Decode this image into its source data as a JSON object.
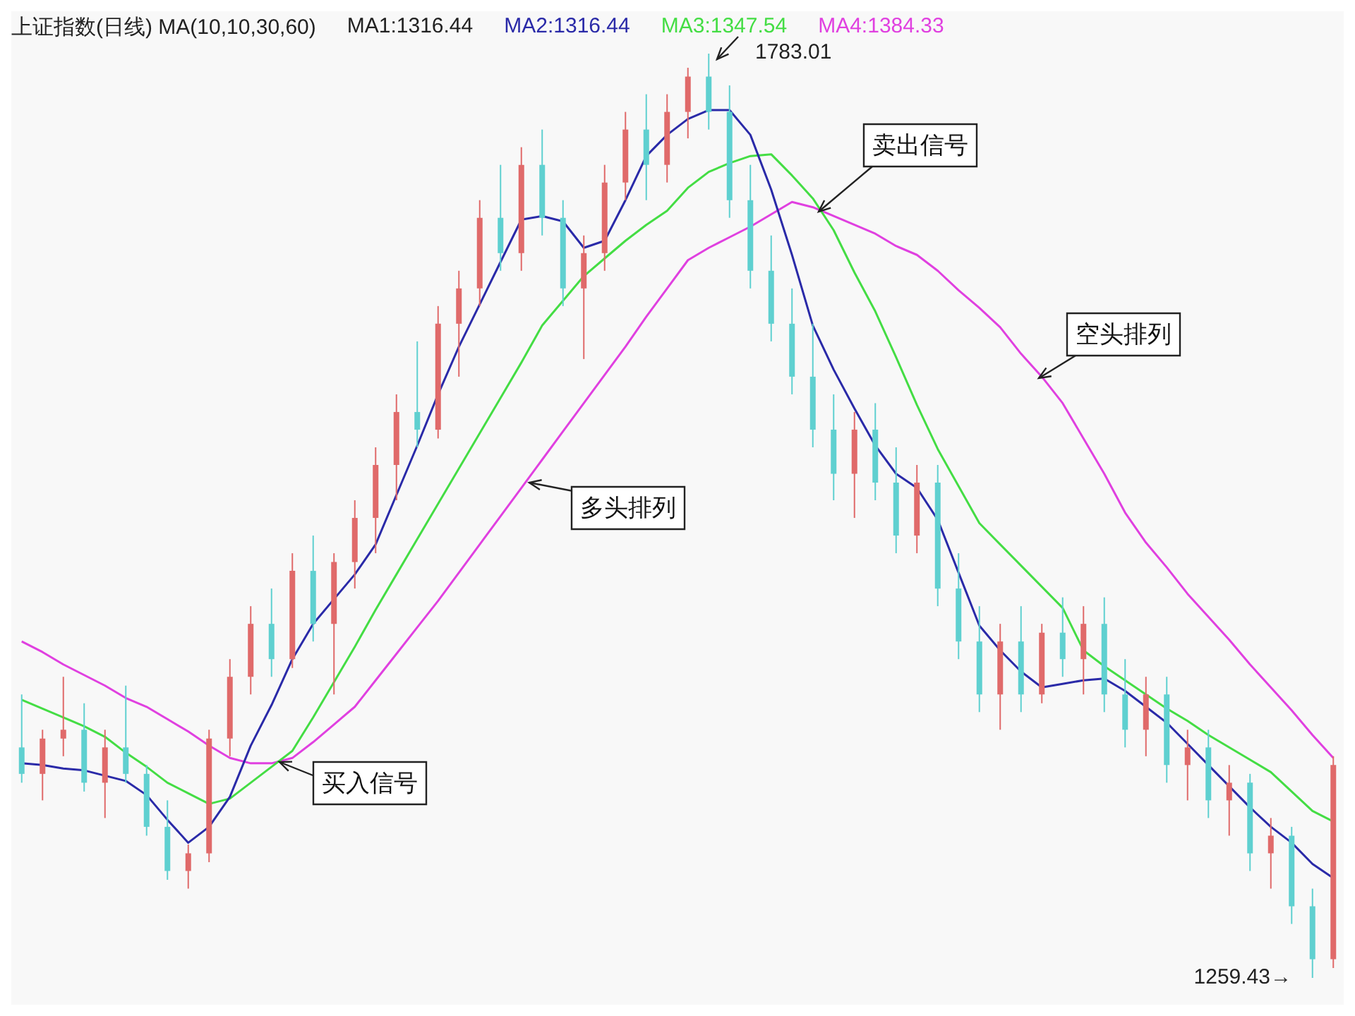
{
  "chart_data": {
    "type": "candlestick",
    "title": "上证指数(日线) MA(10,10,30,60)",
    "legend": "top left",
    "categories": [
      null,
      null,
      null,
      null,
      null,
      null,
      null,
      null,
      null,
      null,
      null,
      null,
      null,
      null,
      null,
      null,
      null,
      null,
      null,
      null,
      null,
      null,
      null,
      null,
      null,
      null,
      null,
      null,
      null,
      null,
      null,
      null,
      null,
      null,
      null,
      null,
      null,
      null,
      null,
      null,
      null,
      null,
      null,
      null,
      null,
      null,
      null,
      null,
      null,
      null,
      null,
      null,
      null,
      null,
      null,
      null,
      null,
      null,
      null,
      null,
      null,
      null,
      null,
      null
    ],
    "ohlc": [
      [
        1390,
        1420,
        1370,
        1375
      ],
      [
        1375,
        1400,
        1360,
        1395
      ],
      [
        1395,
        1430,
        1385,
        1400
      ],
      [
        1400,
        1415,
        1365,
        1370
      ],
      [
        1370,
        1400,
        1350,
        1390
      ],
      [
        1390,
        1425,
        1370,
        1375
      ],
      [
        1375,
        1380,
        1340,
        1345
      ],
      [
        1345,
        1360,
        1315,
        1320
      ],
      [
        1320,
        1335,
        1310,
        1330
      ],
      [
        1330,
        1400,
        1325,
        1395
      ],
      [
        1395,
        1440,
        1385,
        1430
      ],
      [
        1430,
        1470,
        1420,
        1460
      ],
      [
        1460,
        1480,
        1430,
        1440
      ],
      [
        1440,
        1500,
        1435,
        1490
      ],
      [
        1490,
        1510,
        1450,
        1460
      ],
      [
        1460,
        1500,
        1420,
        1495
      ],
      [
        1495,
        1530,
        1480,
        1520
      ],
      [
        1520,
        1560,
        1500,
        1550
      ],
      [
        1550,
        1590,
        1530,
        1580
      ],
      [
        1580,
        1620,
        1560,
        1570
      ],
      [
        1570,
        1640,
        1565,
        1630
      ],
      [
        1630,
        1660,
        1600,
        1650
      ],
      [
        1650,
        1700,
        1640,
        1690
      ],
      [
        1690,
        1720,
        1660,
        1670
      ],
      [
        1670,
        1730,
        1660,
        1720
      ],
      [
        1720,
        1740,
        1680,
        1690
      ],
      [
        1690,
        1700,
        1640,
        1650
      ],
      [
        1650,
        1680,
        1610,
        1670
      ],
      [
        1670,
        1720,
        1660,
        1710
      ],
      [
        1710,
        1750,
        1700,
        1740
      ],
      [
        1740,
        1760,
        1700,
        1720
      ],
      [
        1720,
        1760,
        1710,
        1750
      ],
      [
        1750,
        1775,
        1735,
        1770
      ],
      [
        1770,
        1783.01,
        1740,
        1750
      ],
      [
        1750,
        1765,
        1690,
        1700
      ],
      [
        1700,
        1720,
        1650,
        1660
      ],
      [
        1660,
        1680,
        1620,
        1630
      ],
      [
        1630,
        1650,
        1590,
        1600
      ],
      [
        1600,
        1630,
        1560,
        1570
      ],
      [
        1570,
        1590,
        1530,
        1545
      ],
      [
        1545,
        1580,
        1520,
        1570
      ],
      [
        1570,
        1585,
        1530,
        1540
      ],
      [
        1540,
        1560,
        1500,
        1510
      ],
      [
        1510,
        1550,
        1500,
        1540
      ],
      [
        1540,
        1550,
        1470,
        1480
      ],
      [
        1480,
        1500,
        1440,
        1450
      ],
      [
        1450,
        1470,
        1410,
        1420
      ],
      [
        1420,
        1460,
        1400,
        1450
      ],
      [
        1450,
        1470,
        1410,
        1420
      ],
      [
        1420,
        1460,
        1415,
        1455
      ],
      [
        1455,
        1475,
        1430,
        1440
      ],
      [
        1440,
        1470,
        1420,
        1460
      ],
      [
        1460,
        1475,
        1410,
        1420
      ],
      [
        1420,
        1440,
        1390,
        1400
      ],
      [
        1400,
        1430,
        1385,
        1420
      ],
      [
        1420,
        1430,
        1370,
        1380
      ],
      [
        1380,
        1400,
        1360,
        1390
      ],
      [
        1390,
        1400,
        1350,
        1360
      ],
      [
        1360,
        1380,
        1340,
        1370
      ],
      [
        1370,
        1375,
        1320,
        1330
      ],
      [
        1330,
        1350,
        1310,
        1340
      ],
      [
        1340,
        1345,
        1290,
        1300
      ],
      [
        1300,
        1310,
        1259.43,
        1270
      ],
      [
        1270,
        1385,
        1265,
        1380
      ]
    ],
    "colors": [
      "#5fd0d0",
      "#e06a6a",
      "#e06a6a",
      "#5fd0d0",
      "#e06a6a",
      "#5fd0d0",
      "#5fd0d0",
      "#5fd0d0",
      "#e06a6a",
      "#e06a6a",
      "#e06a6a",
      "#e06a6a",
      "#5fd0d0",
      "#e06a6a",
      "#5fd0d0",
      "#e06a6a",
      "#e06a6a",
      "#e06a6a",
      "#e06a6a",
      "#5fd0d0",
      "#e06a6a",
      "#e06a6a",
      "#e06a6a",
      "#5fd0d0",
      "#e06a6a",
      "#5fd0d0",
      "#5fd0d0",
      "#e06a6a",
      "#e06a6a",
      "#e06a6a",
      "#5fd0d0",
      "#e06a6a",
      "#e06a6a",
      "#5fd0d0",
      "#5fd0d0",
      "#5fd0d0",
      "#5fd0d0",
      "#5fd0d0",
      "#5fd0d0",
      "#5fd0d0",
      "#e06a6a",
      "#5fd0d0",
      "#5fd0d0",
      "#e06a6a",
      "#5fd0d0",
      "#5fd0d0",
      "#5fd0d0",
      "#e06a6a",
      "#5fd0d0",
      "#e06a6a",
      "#5fd0d0",
      "#e06a6a",
      "#5fd0d0",
      "#5fd0d0",
      "#e06a6a",
      "#5fd0d0",
      "#e06a6a",
      "#5fd0d0",
      "#e06a6a",
      "#5fd0d0",
      "#e06a6a",
      "#5fd0d0",
      "#5fd0d0",
      "#e06a6a"
    ],
    "series": [
      {
        "type": "line",
        "name": "MA2:1316.44",
        "color": "#2a2aa8",
        "values": [
          1381,
          1380,
          1378,
          1377,
          1374,
          1371,
          1363,
          1349,
          1336,
          1345,
          1362,
          1391,
          1414,
          1440,
          1460,
          1474,
          1488,
          1505,
          1533,
          1561,
          1590,
          1617,
          1641,
          1665,
          1689,
          1691,
          1688,
          1673,
          1677,
          1700,
          1725,
          1737,
          1746,
          1751,
          1751,
          1737,
          1706,
          1669,
          1629,
          1604,
          1582,
          1561,
          1545,
          1537,
          1519,
          1489,
          1459,
          1445,
          1433,
          1424,
          1426,
          1428,
          1429,
          1422,
          1413,
          1404,
          1392,
          1380,
          1368,
          1356,
          1345,
          1336,
          1324,
          1316
        ]
      },
      {
        "type": "line",
        "name": "MA3:1347.54",
        "color": "#44dd44",
        "values": [
          1417,
          1412,
          1407,
          1402,
          1396,
          1387,
          1379,
          1370,
          1364,
          1358,
          1361,
          1370,
          1379,
          1388,
          1407,
          1427,
          1447,
          1468,
          1488,
          1508,
          1528,
          1548,
          1568,
          1588,
          1608,
          1629,
          1643,
          1657,
          1667,
          1677,
          1686,
          1694,
          1707,
          1716,
          1721,
          1725,
          1726,
          1714,
          1701,
          1683,
          1659,
          1637,
          1611,
          1584,
          1559,
          1538,
          1517,
          1505,
          1493,
          1481,
          1469,
          1445,
          1436,
          1428,
          1420,
          1412,
          1405,
          1397,
          1390,
          1383,
          1376,
          1365,
          1354,
          1348
        ]
      },
      {
        "type": "line",
        "name": "MA4:1384.33",
        "color": "#e040e0",
        "values": [
          1450,
          1444,
          1437,
          1431,
          1425,
          1418,
          1413,
          1406,
          1399,
          1391,
          1384,
          1381,
          1381,
          1384,
          1393,
          1403,
          1413,
          1428,
          1443,
          1458,
          1473,
          1489,
          1505,
          1521,
          1537,
          1553,
          1569,
          1585,
          1601,
          1617,
          1634,
          1650,
          1666,
          1673,
          1679,
          1685,
          1692,
          1699,
          1696,
          1691,
          1686,
          1681,
          1674,
          1669,
          1660,
          1649,
          1639,
          1628,
          1613,
          1600,
          1585,
          1565,
          1545,
          1523,
          1506,
          1492,
          1477,
          1464,
          1451,
          1437,
          1424,
          1411,
          1397,
          1384
        ]
      }
    ],
    "annotations": [
      "MA1:1316.44",
      "1783.01",
      "1259.43→",
      "卖出信号",
      "空头排列",
      "多头排列",
      "买入信号"
    ]
  }
}
